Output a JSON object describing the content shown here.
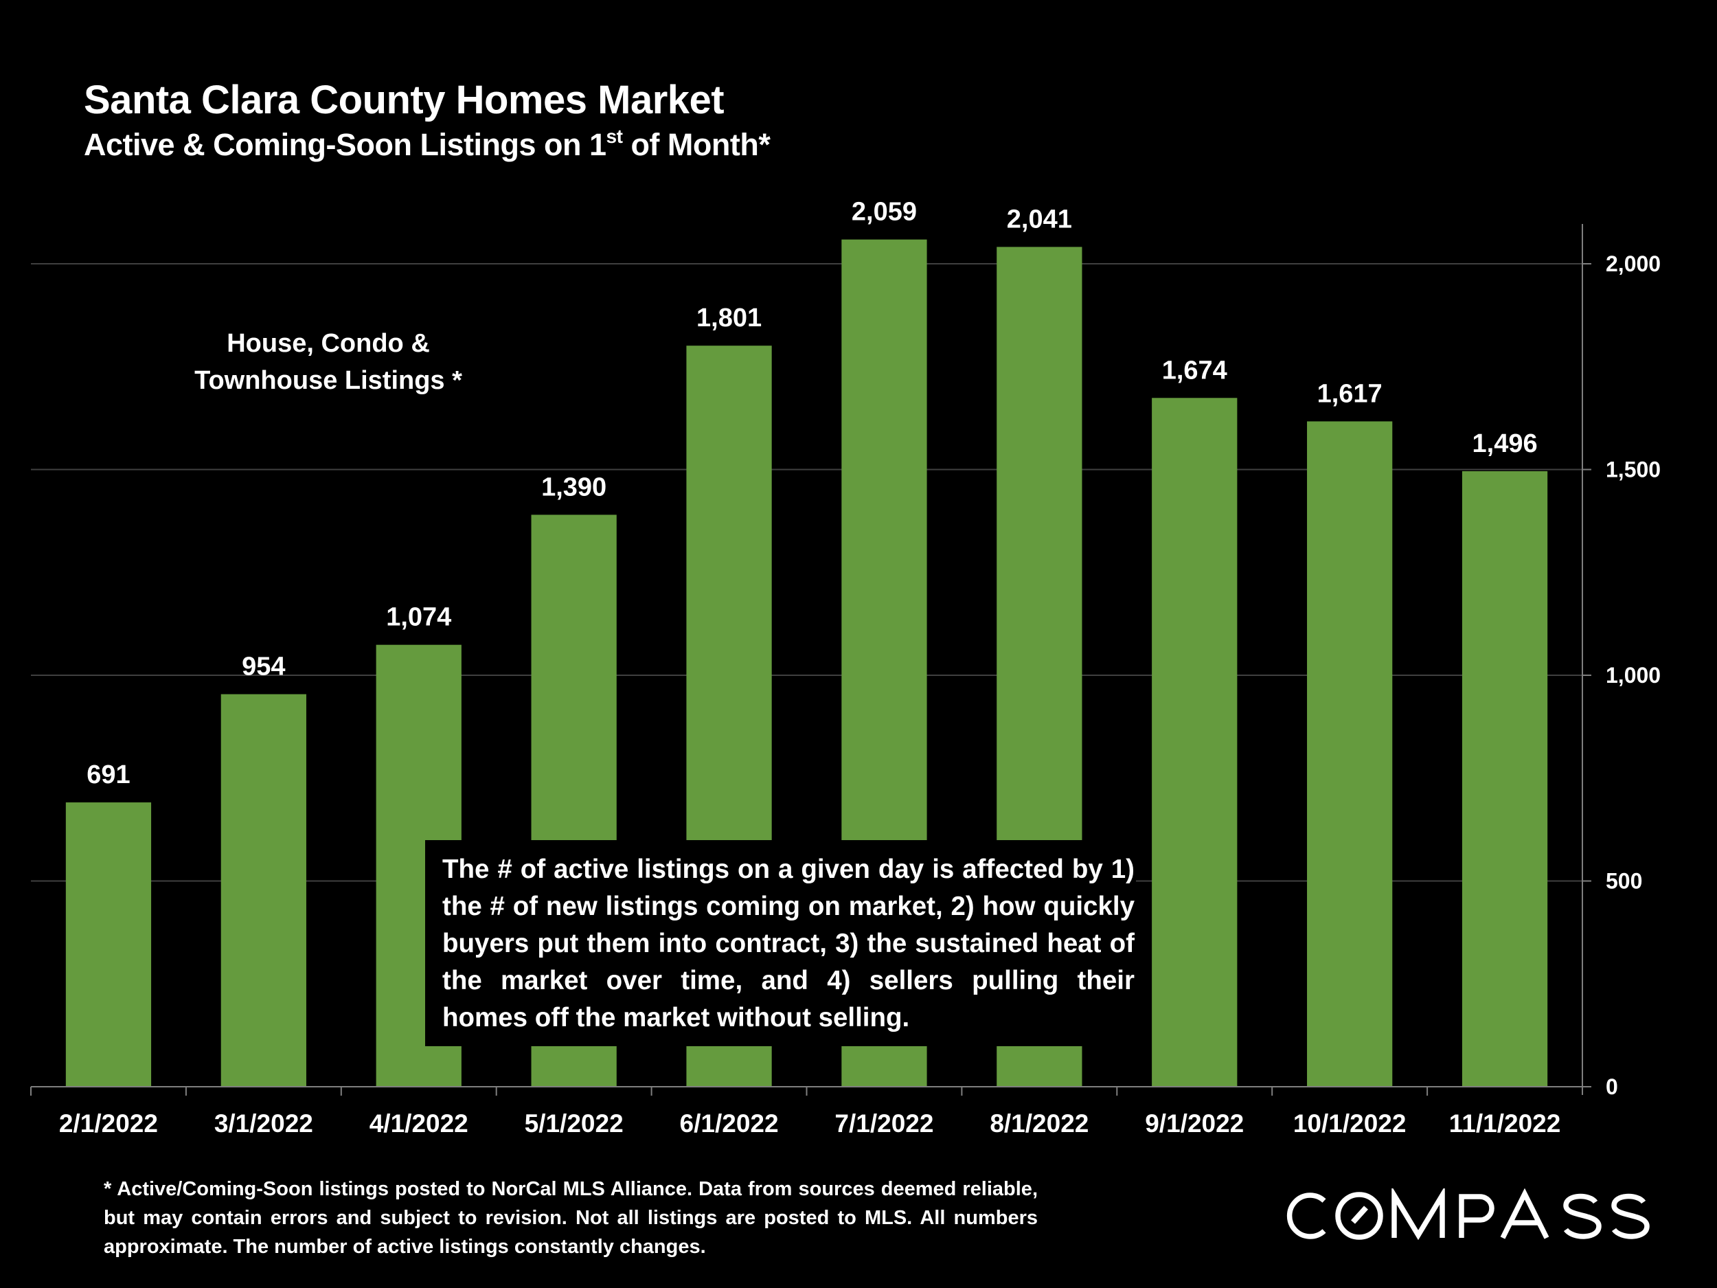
{
  "title": "Santa Clara County Homes Market",
  "subtitle": {
    "pre": "Active & Coming-Soon Listings on 1",
    "sup": "st",
    "post": " of Month*"
  },
  "series_label": [
    "House, Condo &",
    "Townhouse Listings *"
  ],
  "annotation": "The # of active listings on a given day is affected by 1) the # of new listings coming on market, 2) how quickly buyers put them into contract, 3) the sustained heat of the market over time, and 4) sellers pulling their homes off the market without selling.",
  "footnote": "* Active/Coming-Soon listings posted to NorCal MLS Alliance.  Data from sources deemed reliable, but may contain errors and subject to revision.  Not all listings are posted to MLS. All numbers approximate. The number of active listings constantly changes.",
  "logo": "COMPASS",
  "colors": {
    "bar": "#659B3E",
    "background": "#000000",
    "grid": "#404040",
    "axis": "#7f7f7f",
    "text": "#ffffff"
  },
  "chart_data": {
    "type": "bar",
    "title": "Santa Clara County Homes Market",
    "categories": [
      "2/1/2022",
      "3/1/2022",
      "4/1/2022",
      "5/1/2022",
      "6/1/2022",
      "7/1/2022",
      "8/1/2022",
      "9/1/2022",
      "10/1/2022",
      "11/1/2022"
    ],
    "values": [
      691,
      954,
      1074,
      1390,
      1801,
      2059,
      2041,
      1674,
      1617,
      1496
    ],
    "value_labels": [
      "691",
      "954",
      "1,074",
      "1,390",
      "1,801",
      "2,059",
      "2,041",
      "1,674",
      "1,617",
      "1,496"
    ],
    "xlabel": "",
    "ylabel": "",
    "ylim": [
      0,
      2100
    ],
    "yticks": [
      0,
      500,
      1000,
      1500,
      2000
    ],
    "ytick_labels": [
      "0",
      "500",
      "1,000",
      "1,500",
      "2,000"
    ],
    "y_axis_side": "right",
    "grid": true,
    "legend": "none"
  }
}
